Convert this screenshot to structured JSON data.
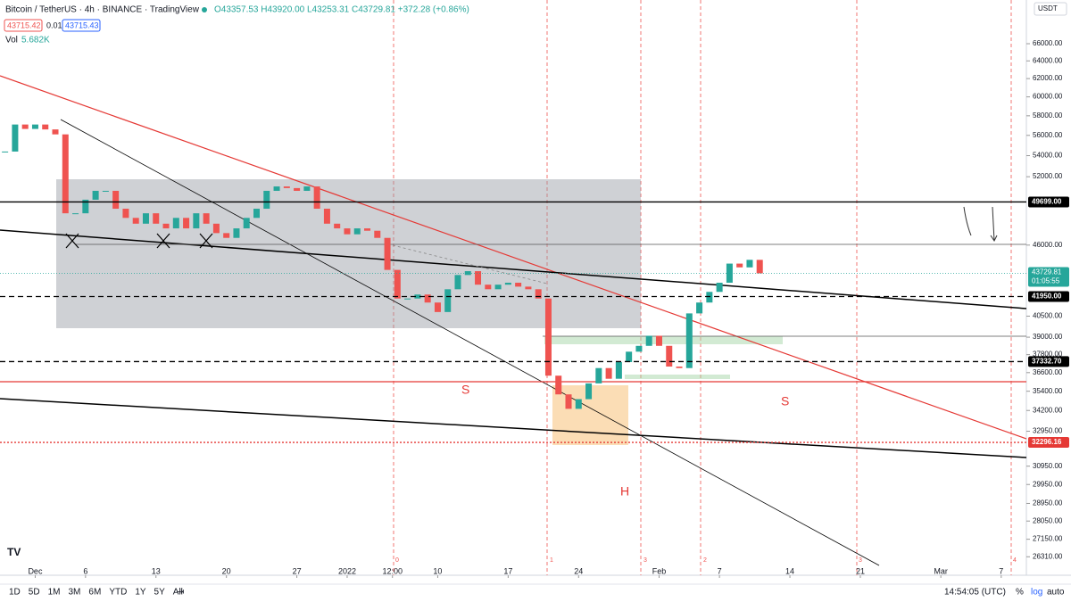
{
  "header": {
    "title": "Bitcoin / TetherUS · 4h · BINANCE · TradingView",
    "ohlc": "O43357.53 H43920.00 L43253.31 C43729.81 +372.28 (+0.86%)",
    "bid": "43715.42",
    "spread": "0.01",
    "ask": "43715.43",
    "vol_label": "Vol",
    "vol_value": "5.682K",
    "currency": "USDT"
  },
  "toolbar": {
    "ranges": [
      "1D",
      "5D",
      "1M",
      "3M",
      "6M",
      "YTD",
      "1Y",
      "5Y",
      "All"
    ],
    "clock": "14:54:05 (UTC)",
    "percent": "%",
    "log": "log",
    "auto": "auto"
  },
  "annotations": {
    "s_left": "S",
    "s_right": "S",
    "h": "H"
  },
  "cycle_labels": [
    "0",
    "1",
    "3",
    "2",
    "3",
    "4"
  ],
  "price_tags": [
    {
      "value": 49699,
      "label": "49699.00"
    },
    {
      "value": 41950,
      "label": "41950.00"
    },
    {
      "value": 37332.7,
      "label": "37332.70"
    },
    {
      "value": 32296.16,
      "label": "32296.16"
    }
  ],
  "last_price": {
    "value": 43729.81,
    "label": "43729.81",
    "countdown": "01:05:55"
  },
  "chart_data": {
    "type": "candlestick",
    "log_scale": true,
    "up_color": "#26a69a",
    "down_color": "#ef5350",
    "ylim": [
      25453,
      71380
    ],
    "yticks": [
      {
        "value": 66000,
        "label": "66000.00"
      },
      {
        "value": 64000,
        "label": "64000.00"
      },
      {
        "value": 62000,
        "label": "62000.00"
      },
      {
        "value": 60000,
        "label": "60000.00"
      },
      {
        "value": 58000,
        "label": "58000.00"
      },
      {
        "value": 56000,
        "label": "56000.00"
      },
      {
        "value": 54000,
        "label": "54000.00"
      },
      {
        "value": 52000,
        "label": "52000.00"
      },
      {
        "value": 46000,
        "label": "46000.00"
      },
      {
        "value": 40500,
        "label": "40500.00"
      },
      {
        "value": 39000,
        "label": "39000.00"
      },
      {
        "value": 37800,
        "label": "37800.00"
      },
      {
        "value": 36600,
        "label": "36600.00"
      },
      {
        "value": 35400,
        "label": "35400.00"
      },
      {
        "value": 34200,
        "label": "34200.00"
      },
      {
        "value": 32950,
        "label": "32950.00"
      },
      {
        "value": 30950,
        "label": "30950.00"
      },
      {
        "value": 29950,
        "label": "29950.00"
      },
      {
        "value": 28950,
        "label": "28950.00"
      },
      {
        "value": 28050,
        "label": "28050.00"
      },
      {
        "value": 27150,
        "label": "27150.00"
      },
      {
        "value": 26310,
        "label": "26310.00"
      }
    ],
    "xlim": [
      -3.5,
      98.5
    ],
    "xticks": [
      {
        "value": 0,
        "label": "Dec"
      },
      {
        "value": 5,
        "label": "6"
      },
      {
        "value": 12,
        "label": "13"
      },
      {
        "value": 19,
        "label": "20"
      },
      {
        "value": 26,
        "label": "27"
      },
      {
        "value": 31,
        "label": "2022"
      },
      {
        "value": 35.5,
        "label": "12:00"
      },
      {
        "value": 40,
        "label": "10"
      },
      {
        "value": 47,
        "label": "17"
      },
      {
        "value": 54,
        "label": "24"
      },
      {
        "value": 62,
        "label": "Feb"
      },
      {
        "value": 68,
        "label": "7"
      },
      {
        "value": 75,
        "label": "14"
      },
      {
        "value": 82,
        "label": "21"
      },
      {
        "value": 90,
        "label": "Mar"
      },
      {
        "value": 96,
        "label": "7"
      }
    ],
    "close": [
      54400,
      57100,
      56650,
      57100,
      56600,
      56100,
      48700,
      48700,
      49900,
      50700,
      50700,
      49100,
      48300,
      47800,
      48700,
      47800,
      47400,
      48300,
      47400,
      48700,
      47800,
      47000,
      46600,
      47400,
      48300,
      49100,
      50700,
      51100,
      50950,
      50700,
      51100,
      49100,
      47800,
      47400,
      46900,
      47400,
      47200,
      46600,
      44000,
      41800,
      41800,
      42100,
      41500,
      40800,
      42500,
      43600,
      43900,
      42850,
      42500,
      42850,
      43000,
      42700,
      42500,
      41800,
      36400,
      35200,
      34300,
      34900,
      35900,
      36900,
      36200,
      37300,
      38000,
      38400,
      39100,
      38400,
      37000,
      36900,
      40700,
      41500,
      42300,
      43000,
      44500,
      44200,
      44800,
      43729.81
    ]
  }
}
